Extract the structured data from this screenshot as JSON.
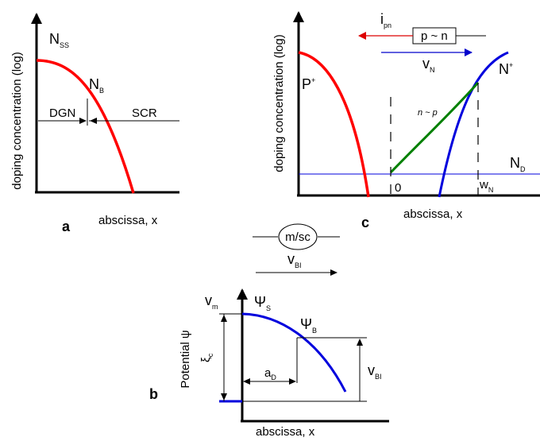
{
  "panel_a": {
    "letter": "a",
    "ylabel": "doping concentration (log)",
    "xlabel": "abscissa, x",
    "nss": {
      "main": "N",
      "sub": "SS"
    },
    "nb": {
      "main": "N",
      "sub": "B"
    },
    "dgn": "DGN",
    "scr": "SCR"
  },
  "panel_c": {
    "letter": "c",
    "ylabel": "doping concentration (log)",
    "xlabel": "abscissa, x",
    "ipn": {
      "main": "i",
      "sub": "pn"
    },
    "box": "p ~ n",
    "vn": {
      "main": "v",
      "sub": "N"
    },
    "pplus": {
      "main": "P",
      "sup": "+"
    },
    "nplus": {
      "main": "N",
      "sup": "+"
    },
    "ntop": "n ~ p",
    "nd": {
      "main": "N",
      "sub": "D"
    },
    "zero": "0",
    "wn": {
      "main": "w",
      "sub": "N"
    }
  },
  "middle": {
    "msc": "m/sc",
    "vbi": {
      "main": "v",
      "sub": "BI"
    }
  },
  "panel_b": {
    "letter": "b",
    "ylabel": "Potential ψ",
    "xlabel": "abscissa, x",
    "vm": {
      "main": "v",
      "sub": "m"
    },
    "psis": {
      "main": "Ψ",
      "sub": "S"
    },
    "psib": {
      "main": "Ψ",
      "sub": "B"
    },
    "xi": {
      "main": "ξ",
      "sub": "c"
    },
    "ad": {
      "main": "a",
      "sub": "D"
    },
    "vbi": {
      "main": "v",
      "sub": "BI"
    }
  },
  "colors": {
    "p_doping": "#ff0000",
    "n_doping": "#0000dd",
    "intrinsic": "#008000",
    "potential": "#0000dd"
  }
}
